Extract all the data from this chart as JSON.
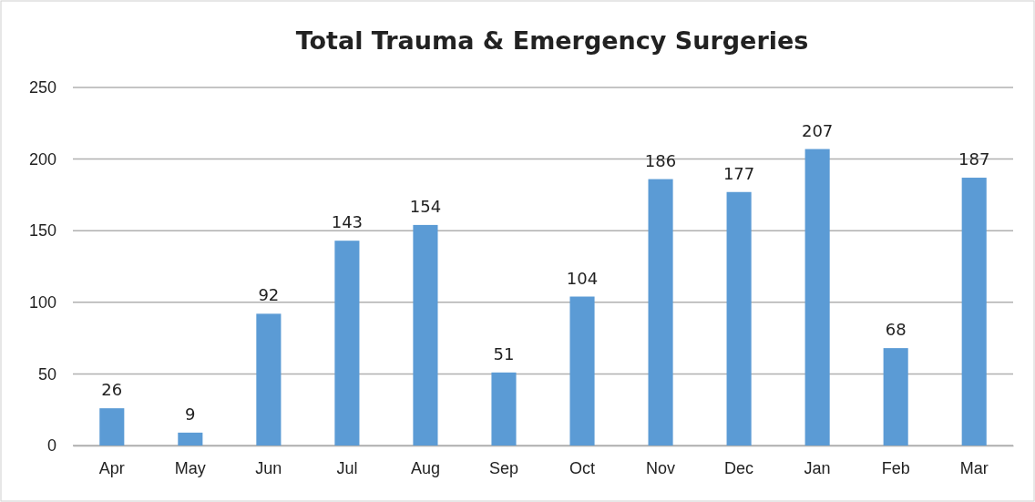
{
  "chart_data": {
    "type": "bar",
    "title": "Total Trauma & Emergency Surgeries",
    "categories": [
      "Apr",
      "May",
      "Jun",
      "Jul",
      "Aug",
      "Sep",
      "Oct",
      "Nov",
      "Dec",
      "Jan",
      "Feb",
      "Mar"
    ],
    "values": [
      26,
      9,
      92,
      143,
      154,
      51,
      104,
      186,
      177,
      207,
      68,
      187
    ],
    "color": "#5b9bd5",
    "ylim": [
      0,
      250
    ],
    "yticks": [
      0,
      50,
      100,
      150,
      200,
      250
    ],
    "grid": "y",
    "data_labels": true
  }
}
